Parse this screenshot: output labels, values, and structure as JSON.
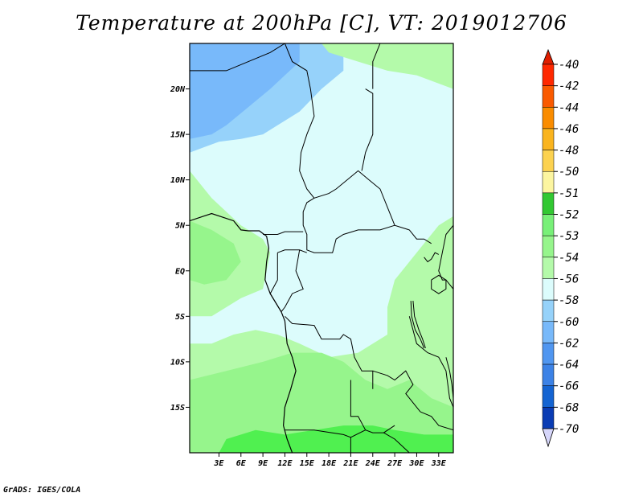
{
  "title": "Temperature at 200hPa [C], VT: 2019012706",
  "credit": "GrADS: IGES/COLA",
  "map": {
    "lon_range": [
      -1,
      35
    ],
    "lat_range": [
      -20,
      25
    ],
    "background_color": "#dcfcfc",
    "lon_ticks": [
      {
        "value": 3,
        "label": "3E"
      },
      {
        "value": 6,
        "label": "6E"
      },
      {
        "value": 9,
        "label": "9E"
      },
      {
        "value": 12,
        "label": "12E"
      },
      {
        "value": 15,
        "label": "15E"
      },
      {
        "value": 18,
        "label": "18E"
      },
      {
        "value": 21,
        "label": "21E"
      },
      {
        "value": 24,
        "label": "24E"
      },
      {
        "value": 27,
        "label": "27E"
      },
      {
        "value": 30,
        "label": "30E"
      },
      {
        "value": 33,
        "label": "33E"
      }
    ],
    "lat_ticks": [
      {
        "value": 20,
        "label": "20N"
      },
      {
        "value": 15,
        "label": "15N"
      },
      {
        "value": 10,
        "label": "10N"
      },
      {
        "value": 5,
        "label": "5N"
      },
      {
        "value": 0,
        "label": "EQ"
      },
      {
        "value": -5,
        "label": "5S"
      },
      {
        "value": -10,
        "label": "10S"
      },
      {
        "value": -15,
        "label": "15S"
      }
    ],
    "regions": [
      {
        "name": "cold-north",
        "color": "#96d2fa",
        "level": "-56",
        "lonlat": [
          [
            -1,
            25
          ],
          [
            20,
            25
          ],
          [
            20,
            22
          ],
          [
            17,
            20
          ],
          [
            14,
            17.5
          ],
          [
            11,
            16
          ],
          [
            9,
            15
          ],
          [
            6,
            14.5
          ],
          [
            3,
            14.2
          ],
          [
            -1,
            13
          ]
        ]
      },
      {
        "name": "coldest-north",
        "color": "#78b9fa",
        "level": "-58",
        "lonlat": [
          [
            -1,
            25
          ],
          [
            14,
            25
          ],
          [
            14,
            23
          ],
          [
            12,
            21.5
          ],
          [
            10,
            20
          ],
          [
            7,
            18
          ],
          [
            4,
            16
          ],
          [
            2,
            15
          ],
          [
            -1,
            14.5
          ]
        ]
      },
      {
        "name": "green-northeast",
        "color": "#b4faaa",
        "level": "-53",
        "lonlat": [
          [
            17,
            25
          ],
          [
            35,
            25
          ],
          [
            35,
            20
          ],
          [
            30,
            21.5
          ],
          [
            26,
            22
          ],
          [
            22,
            23
          ],
          [
            18,
            24
          ]
        ]
      },
      {
        "name": "green-northwest-coast",
        "color": "#b4faaa",
        "level": "-53",
        "lonlat": [
          [
            -1,
            11
          ],
          [
            2,
            8
          ],
          [
            6,
            5
          ],
          [
            9,
            3.5
          ],
          [
            10,
            2
          ],
          [
            9,
            -2
          ],
          [
            6,
            -3
          ],
          [
            2,
            -5
          ],
          [
            -1,
            -5
          ]
        ]
      },
      {
        "name": "green-east",
        "color": "#b4faaa",
        "level": "-53",
        "lonlat": [
          [
            35,
            6
          ],
          [
            33,
            5
          ],
          [
            31,
            3
          ],
          [
            29,
            1
          ],
          [
            27,
            -1
          ],
          [
            26,
            -4
          ],
          [
            26,
            -7
          ],
          [
            22,
            -9
          ],
          [
            18,
            -9.5
          ],
          [
            14,
            -8
          ],
          [
            11,
            -7
          ],
          [
            8,
            -6.5
          ],
          [
            5,
            -7
          ],
          [
            2,
            -8
          ],
          [
            -1,
            -8
          ],
          [
            -1,
            -20
          ],
          [
            35,
            -20
          ]
        ]
      },
      {
        "name": "green-south",
        "color": "#96f58c",
        "level": "-52",
        "lonlat": [
          [
            -1,
            -12
          ],
          [
            4,
            -11
          ],
          [
            9,
            -10
          ],
          [
            13,
            -9
          ],
          [
            17,
            -9
          ],
          [
            20,
            -10
          ],
          [
            23,
            -12
          ],
          [
            26,
            -13
          ],
          [
            29,
            -12
          ],
          [
            32,
            -14
          ],
          [
            35,
            -15
          ],
          [
            35,
            -20
          ],
          [
            -1,
            -20
          ]
        ]
      },
      {
        "name": "green-west-coast",
        "color": "#96f58c",
        "level": "-52",
        "lonlat": [
          [
            -1,
            5.5
          ],
          [
            2,
            4.5
          ],
          [
            5,
            3
          ],
          [
            6,
            1
          ],
          [
            4,
            -1
          ],
          [
            1,
            -1.5
          ],
          [
            -1,
            -1
          ]
        ]
      },
      {
        "name": "darker-south",
        "color": "#50f050",
        "level": "-51",
        "lonlat": [
          [
            3,
            -20
          ],
          [
            4,
            -18.5
          ],
          [
            8,
            -17.5
          ],
          [
            12,
            -18
          ],
          [
            16,
            -17.5
          ],
          [
            20,
            -17
          ],
          [
            24,
            -17
          ],
          [
            27,
            -17.5
          ],
          [
            31,
            -18
          ],
          [
            35,
            -18
          ],
          [
            35,
            -20
          ]
        ]
      }
    ],
    "border_lines": [
      [
        [
          -1,
          22
        ],
        [
          4,
          22
        ],
        [
          10,
          24
        ],
        [
          12,
          25
        ]
      ],
      [
        [
          12,
          25
        ],
        [
          13,
          23
        ],
        [
          15,
          22
        ],
        [
          15.5,
          20
        ],
        [
          16,
          17
        ],
        [
          15,
          15
        ],
        [
          14.2,
          13
        ],
        [
          14,
          11
        ]
      ],
      [
        [
          14,
          11
        ],
        [
          15,
          9
        ],
        [
          16,
          8
        ],
        [
          18,
          8.5
        ],
        [
          19,
          9
        ],
        [
          22,
          11
        ],
        [
          23.5,
          10
        ]
      ],
      [
        [
          23.5,
          10
        ],
        [
          25,
          9
        ],
        [
          27,
          5
        ],
        [
          29,
          4.5
        ],
        [
          30,
          3.5
        ],
        [
          31,
          3.5
        ],
        [
          32,
          3
        ]
      ],
      [
        [
          24,
          20
        ],
        [
          24,
          23
        ],
        [
          25,
          25
        ]
      ],
      [
        [
          23,
          20
        ],
        [
          24,
          19.5
        ],
        [
          24,
          15
        ],
        [
          23,
          13
        ],
        [
          22.5,
          11
        ]
      ],
      [
        [
          35,
          5
        ],
        [
          34,
          4
        ],
        [
          33.5,
          2
        ],
        [
          33,
          0
        ],
        [
          33.5,
          -1
        ],
        [
          34,
          -1
        ],
        [
          35,
          -2
        ]
      ],
      [
        [
          27,
          5
        ],
        [
          25,
          4.5
        ],
        [
          22,
          4.5
        ],
        [
          20,
          4
        ],
        [
          19,
          3.5
        ],
        [
          18.5,
          2
        ],
        [
          16,
          2
        ],
        [
          15,
          2.3
        ],
        [
          15,
          4
        ],
        [
          14.5,
          5
        ],
        [
          14.5,
          6.5
        ],
        [
          15,
          7.5
        ],
        [
          16,
          8
        ]
      ],
      [
        [
          9,
          4
        ],
        [
          11,
          4
        ],
        [
          12,
          4.3
        ],
        [
          14.5,
          4.3
        ]
      ],
      [
        [
          11,
          2
        ],
        [
          12,
          2.3
        ],
        [
          14,
          2.3
        ],
        [
          15,
          2
        ]
      ],
      [
        [
          11,
          2
        ],
        [
          11,
          -1
        ],
        [
          10,
          -2.5
        ],
        [
          11.5,
          -4.5
        ]
      ],
      [
        [
          14,
          2.3
        ],
        [
          13.5,
          0
        ],
        [
          14.5,
          -2
        ],
        [
          13,
          -2.5
        ],
        [
          12,
          -4
        ],
        [
          11.5,
          -4.5
        ]
      ],
      [
        [
          12,
          -5
        ],
        [
          13,
          -5.8
        ],
        [
          16,
          -6
        ],
        [
          17,
          -7.5
        ],
        [
          19.5,
          -7.5
        ],
        [
          20,
          -7
        ],
        [
          21,
          -7.5
        ],
        [
          21.5,
          -9.5
        ],
        [
          22.5,
          -11
        ],
        [
          24,
          -11
        ],
        [
          24,
          -13
        ]
      ],
      [
        [
          24,
          -11
        ],
        [
          26,
          -11.5
        ],
        [
          27,
          -12
        ],
        [
          28.5,
          -11
        ],
        [
          29.5,
          -12.5
        ],
        [
          28.5,
          -13.5
        ],
        [
          30.5,
          -15.5
        ]
      ],
      [
        [
          29,
          -5
        ],
        [
          30,
          -8
        ],
        [
          31.5,
          -9
        ],
        [
          33,
          -9.5
        ],
        [
          34,
          -11
        ],
        [
          34.5,
          -14
        ],
        [
          35,
          -15
        ]
      ],
      [
        [
          12,
          -17.5
        ],
        [
          16,
          -17.5
        ],
        [
          20,
          -18
        ],
        [
          21,
          -18.3
        ],
        [
          23,
          -17.5
        ],
        [
          24,
          -17.8
        ],
        [
          25.5,
          -17.8
        ],
        [
          27,
          -17
        ]
      ],
      [
        [
          21,
          -18.3
        ],
        [
          21,
          -20
        ]
      ],
      [
        [
          25.5,
          -17.8
        ],
        [
          27,
          -18.5
        ],
        [
          29,
          -20
        ]
      ],
      [
        [
          30.5,
          -15.5
        ],
        [
          32,
          -16
        ],
        [
          33,
          -17
        ],
        [
          35,
          -17.5
        ]
      ],
      [
        [
          21,
          -12
        ],
        [
          21,
          -16
        ],
        [
          22,
          -16
        ],
        [
          23,
          -17.5
        ]
      ]
    ],
    "coast_lines": [
      [
        [
          -1,
          5.5
        ],
        [
          2,
          6.3
        ],
        [
          5,
          5.5
        ],
        [
          6,
          4.5
        ],
        [
          7,
          4.4
        ],
        [
          8.5,
          4.4
        ],
        [
          9.5,
          3.8
        ],
        [
          9.8,
          2.5
        ],
        [
          9.5,
          1
        ],
        [
          9.3,
          -1
        ],
        [
          10,
          -2.5
        ],
        [
          11.5,
          -4.5
        ],
        [
          12,
          -5.5
        ],
        [
          12.3,
          -8
        ],
        [
          13,
          -9.5
        ],
        [
          13.5,
          -11
        ],
        [
          12.8,
          -13
        ],
        [
          12,
          -15
        ],
        [
          11.8,
          -17
        ],
        [
          12.3,
          -18.5
        ],
        [
          13,
          -20
        ]
      ]
    ],
    "lake_lines": [
      [
        [
          29.2,
          -3.3
        ],
        [
          29.3,
          -5
        ],
        [
          29.8,
          -6.5
        ],
        [
          30.5,
          -7.5
        ],
        [
          31,
          -8.5
        ]
      ],
      [
        [
          29.5,
          -3.3
        ],
        [
          29.7,
          -5
        ],
        [
          30.3,
          -6.5
        ],
        [
          30.8,
          -7.5
        ],
        [
          31.2,
          -8.5
        ]
      ],
      [
        [
          34,
          -9.5
        ],
        [
          34.5,
          -11
        ],
        [
          34.8,
          -12.5
        ],
        [
          35,
          -14
        ]
      ],
      [
        [
          31,
          1.5
        ],
        [
          31.5,
          1
        ],
        [
          32,
          1.3
        ],
        [
          32.5,
          2
        ],
        [
          33,
          1.8
        ]
      ],
      [
        [
          32,
          -1
        ],
        [
          33,
          -0.5
        ],
        [
          34,
          -1
        ],
        [
          34,
          -2
        ],
        [
          33,
          -2.5
        ],
        [
          32,
          -2
        ],
        [
          32,
          -1
        ]
      ]
    ]
  },
  "colorbar": {
    "labels": [
      "-40",
      "-42",
      "-44",
      "-46",
      "-48",
      "-50",
      "-51",
      "-52",
      "-53",
      "-54",
      "-56",
      "-58",
      "-60",
      "-62",
      "-64",
      "-66",
      "-68",
      "-70"
    ],
    "colors": [
      "#ff2800",
      "#fa5a00",
      "#fa8c00",
      "#fab41e",
      "#fcd250",
      "#fcf5a0",
      "#32c832",
      "#78f078",
      "#96f58c",
      "#b4faaa",
      "#dcfcfc",
      "#96d2fa",
      "#78b9fa",
      "#5096f0",
      "#3c82e6",
      "#1464d2",
      "#0a3cb4",
      "#000078"
    ],
    "top_arrow_color": "#e01e00",
    "bottom_arrow_color": "#d6d6fa"
  }
}
